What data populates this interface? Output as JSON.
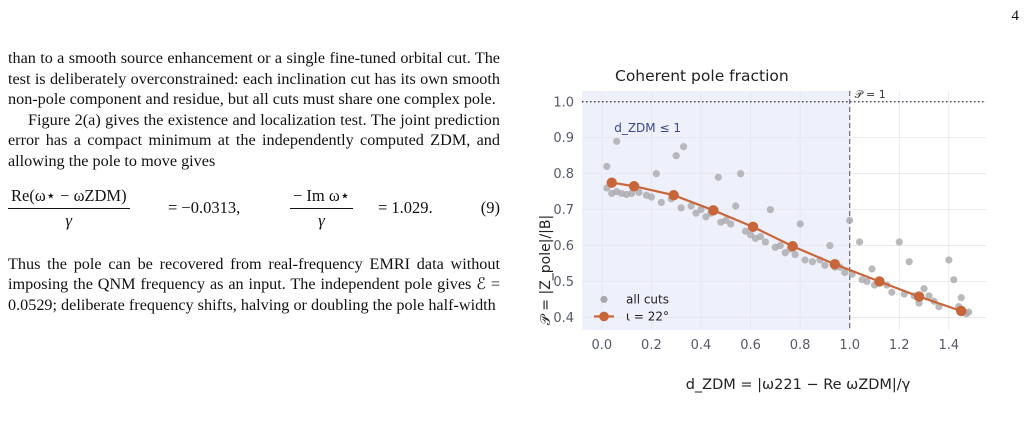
{
  "page_number": "4",
  "text": {
    "para1": "than to a smooth source enhancement or a single fine-tuned orbital cut. The test is deliberately overconstrained: each inclination cut has its own smooth non-pole component and residue, but all cuts must share one complex pole.",
    "para2": "Figure 2(a) gives the existence and localization test. The joint prediction error has a compact minimum at the independently computed ZDM, and allowing the pole to move gives",
    "para3": "Thus the pole can be recovered from real-frequency EMRI data without imposing the QNM frequency as an input. The independent pole gives ℰ = 0.0529; deliberate frequency shifts, halving or doubling the pole half-width"
  },
  "equation": {
    "lhs1_num": "Re(ω⋆ − ωZDM)",
    "lhs1_den": "γ",
    "rhs1": "= −0.0313,",
    "lhs2_num": "− Im ω⋆",
    "lhs2_den": "γ",
    "rhs2": "= 1.029.",
    "number": "(9)"
  },
  "chart_data": {
    "type": "scatter",
    "title": "Coherent pole fraction",
    "xlabel": "d_ZDM = |ω221 − Re ωZDM|/γ",
    "ylabel": "𝒫 = |Z_pole|/|B|",
    "xlim": [
      -0.08,
      1.55
    ],
    "ylim": [
      0.365,
      1.03
    ],
    "xticks": [
      "0.0",
      "0.2",
      "0.4",
      "0.6",
      "0.8",
      "1.0",
      "1.2",
      "1.4"
    ],
    "yticks": [
      "0.4",
      "0.5",
      "0.6",
      "0.7",
      "0.8",
      "0.9",
      "1.0"
    ],
    "grid": true,
    "legend_position": "lower-left",
    "shaded_region_label": "d_ZDM ≤ 1",
    "shaded_region_x": [
      -0.08,
      1.0
    ],
    "reference_line_label": "𝒫 = 1",
    "reference_line_y": 1.0,
    "vertical_line_x": 1.0,
    "colors": {
      "highlight": "#c8663a",
      "all_cuts": "#a9a9ad",
      "shade": "#eef0fb",
      "guides": "#6f7586"
    },
    "series": [
      {
        "name": "all cuts",
        "points": [
          [
            0.02,
            0.82
          ],
          [
            0.06,
            0.89
          ],
          [
            0.02,
            0.76
          ],
          [
            0.04,
            0.745
          ],
          [
            0.06,
            0.75
          ],
          [
            0.08,
            0.745
          ],
          [
            0.1,
            0.742
          ],
          [
            0.12,
            0.745
          ],
          [
            0.15,
            0.748
          ],
          [
            0.18,
            0.74
          ],
          [
            0.2,
            0.735
          ],
          [
            0.22,
            0.8
          ],
          [
            0.24,
            0.72
          ],
          [
            0.28,
            0.73
          ],
          [
            0.3,
            0.85
          ],
          [
            0.32,
            0.705
          ],
          [
            0.33,
            0.875
          ],
          [
            0.36,
            0.71
          ],
          [
            0.38,
            0.69
          ],
          [
            0.4,
            0.7
          ],
          [
            0.42,
            0.68
          ],
          [
            0.44,
            0.69
          ],
          [
            0.47,
            0.79
          ],
          [
            0.48,
            0.665
          ],
          [
            0.5,
            0.67
          ],
          [
            0.52,
            0.66
          ],
          [
            0.54,
            0.71
          ],
          [
            0.56,
            0.8
          ],
          [
            0.58,
            0.64
          ],
          [
            0.6,
            0.63
          ],
          [
            0.62,
            0.62
          ],
          [
            0.64,
            0.625
          ],
          [
            0.66,
            0.61
          ],
          [
            0.68,
            0.7
          ],
          [
            0.7,
            0.595
          ],
          [
            0.72,
            0.6
          ],
          [
            0.74,
            0.58
          ],
          [
            0.76,
            0.59
          ],
          [
            0.78,
            0.575
          ],
          [
            0.8,
            0.66
          ],
          [
            0.82,
            0.56
          ],
          [
            0.85,
            0.555
          ],
          [
            0.88,
            0.56
          ],
          [
            0.9,
            0.545
          ],
          [
            0.92,
            0.6
          ],
          [
            0.94,
            0.54
          ],
          [
            0.96,
            0.54
          ],
          [
            0.98,
            0.525
          ],
          [
            1.0,
            0.67
          ],
          [
            1.01,
            0.52
          ],
          [
            1.04,
            0.61
          ],
          [
            1.05,
            0.505
          ],
          [
            1.07,
            0.5
          ],
          [
            1.09,
            0.535
          ],
          [
            1.1,
            0.49
          ],
          [
            1.15,
            0.49
          ],
          [
            1.17,
            0.47
          ],
          [
            1.2,
            0.61
          ],
          [
            1.22,
            0.465
          ],
          [
            1.24,
            0.555
          ],
          [
            1.26,
            0.46
          ],
          [
            1.28,
            0.44
          ],
          [
            1.3,
            0.48
          ],
          [
            1.32,
            0.46
          ],
          [
            1.34,
            0.445
          ],
          [
            1.36,
            0.43
          ],
          [
            1.4,
            0.56
          ],
          [
            1.42,
            0.505
          ],
          [
            1.44,
            0.43
          ],
          [
            1.45,
            0.455
          ],
          [
            1.47,
            0.41
          ],
          [
            1.48,
            0.415
          ]
        ]
      },
      {
        "name": "ι = 22°",
        "points": [
          [
            0.04,
            0.775
          ],
          [
            0.13,
            0.765
          ],
          [
            0.29,
            0.74
          ],
          [
            0.45,
            0.698
          ],
          [
            0.61,
            0.652
          ],
          [
            0.77,
            0.598
          ],
          [
            0.94,
            0.548
          ],
          [
            1.12,
            0.5
          ],
          [
            1.28,
            0.458
          ],
          [
            1.45,
            0.418
          ]
        ]
      }
    ]
  }
}
